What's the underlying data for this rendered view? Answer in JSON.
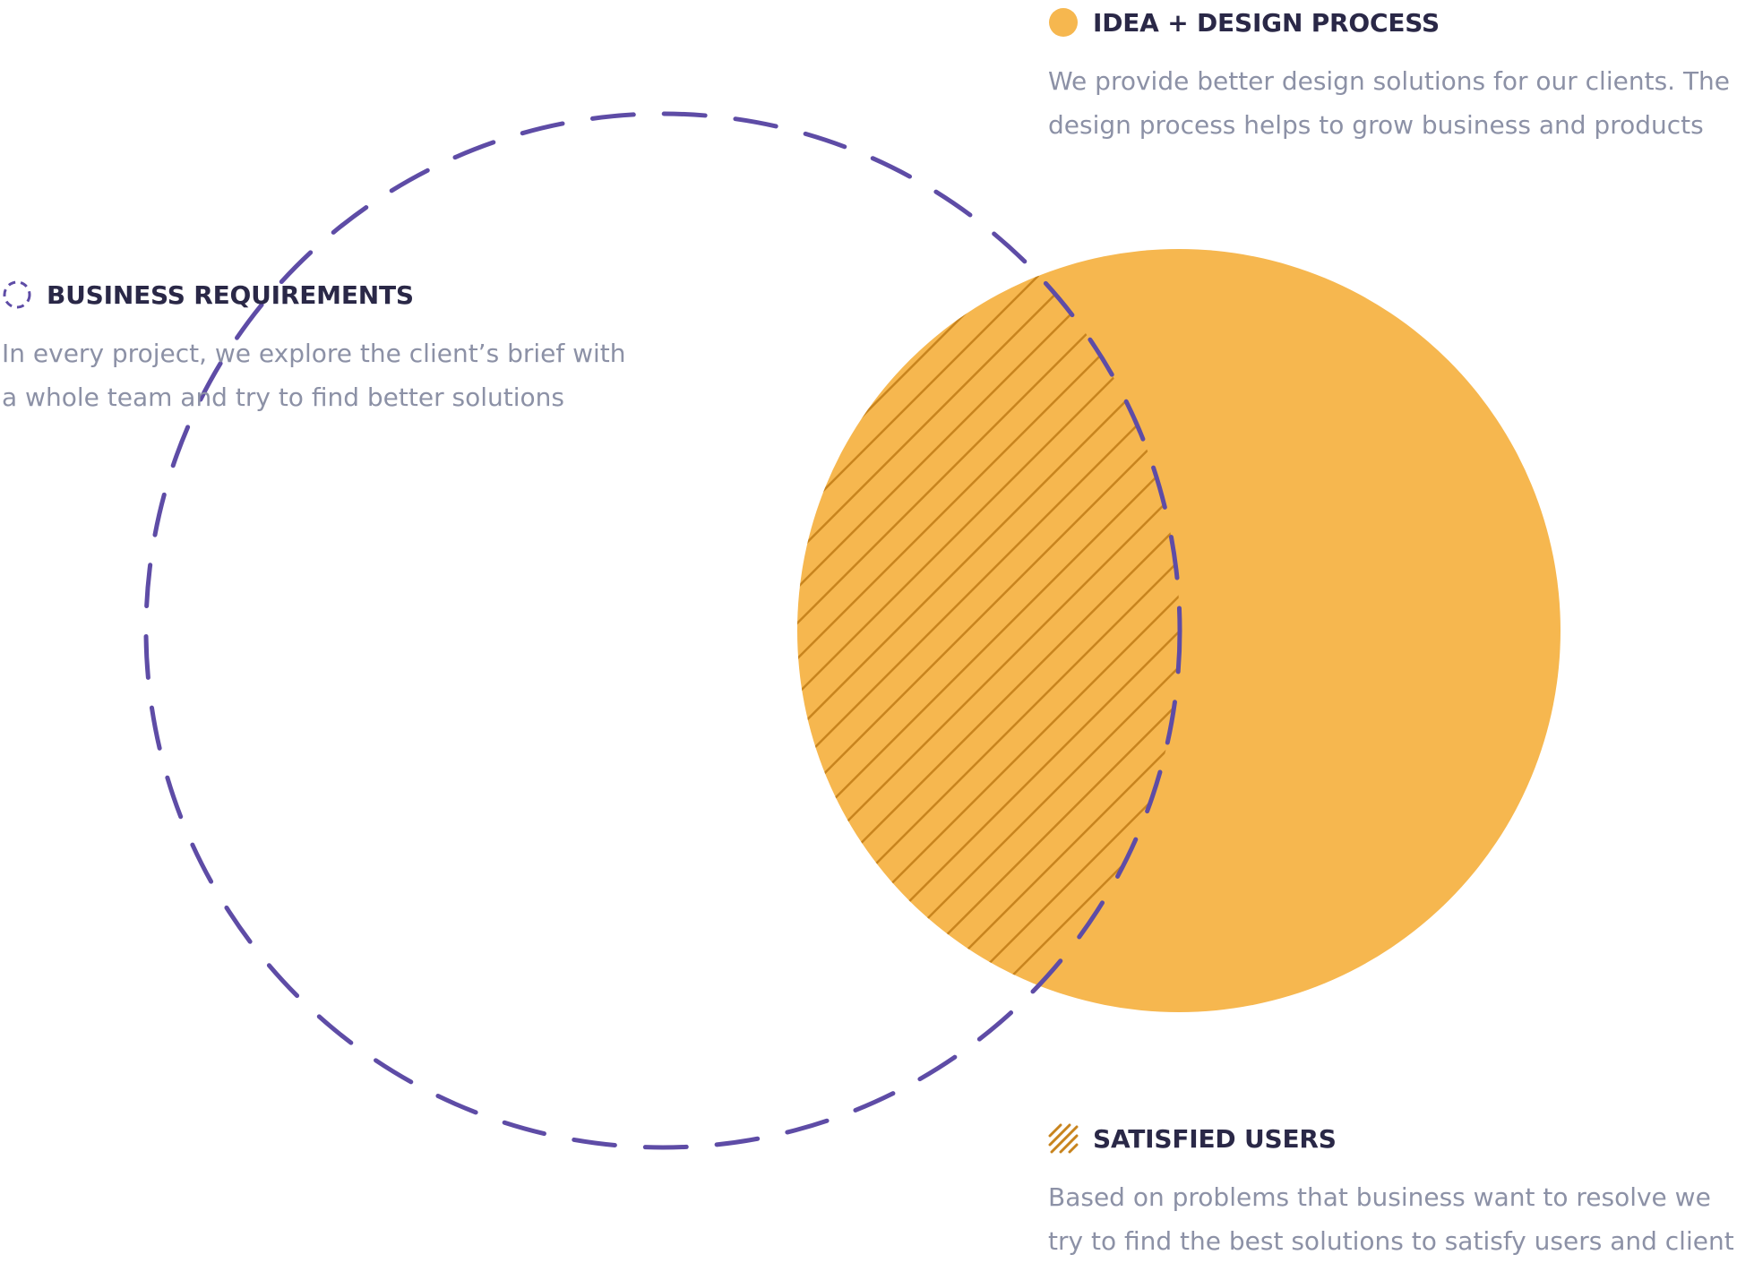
{
  "colors": {
    "dashed_circle": "#5e4ca6",
    "orange_circle": "#f6b74f",
    "hatch": "#c8841e",
    "heading_text": "#2a2847",
    "body_text": "#8c91a6"
  },
  "legends": {
    "idea": {
      "icon": "filled-circle-icon",
      "title": "IDEA + DESIGN PROCESS",
      "lines": [
        "We provide better design solutions for our clients. The",
        "design process helps to grow business and products"
      ]
    },
    "business": {
      "icon": "dashed-circle-icon",
      "title": "BUSINESS REQUIREMENTS",
      "lines": [
        "In every project, we explore the client’s brief with",
        "a whole team and try to find better solutions"
      ]
    },
    "users": {
      "icon": "hatched-square-icon",
      "title": "SATISFIED USERS",
      "lines": [
        "Based on problems that business want to resolve we",
        "try to find the best solutions to satisfy users and client"
      ]
    }
  }
}
